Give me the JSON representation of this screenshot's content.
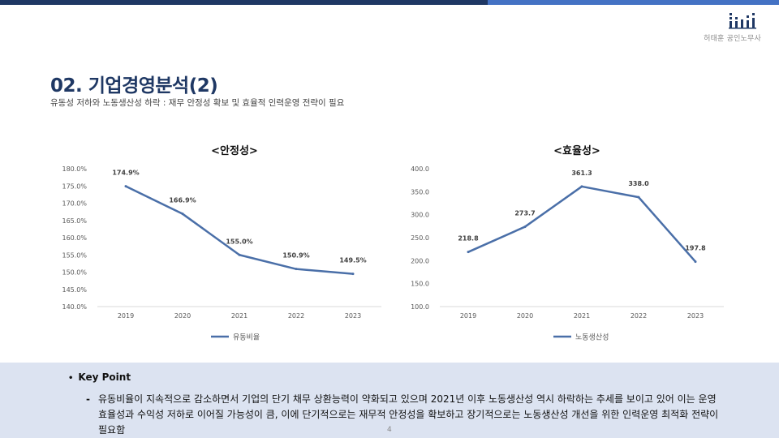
{
  "header": {
    "logo_text": "허태훈 공인노무사",
    "colors": {
      "dark_bar": "#1f3864",
      "light_bar": "#4472c4"
    }
  },
  "slide": {
    "title": "02. 기업경영분석(2)",
    "subtitle": "유동성 저하와 노동생산성 하락 : 재무 안정성 확보 및 효율적 인력운영 전략이 필요",
    "page_number": "4"
  },
  "chart_data": [
    {
      "type": "line",
      "title": "<안정성>",
      "categories": [
        "2019",
        "2020",
        "2021",
        "2022",
        "2023"
      ],
      "series": [
        {
          "name": "유동비율",
          "values": [
            174.9,
            166.9,
            155.0,
            150.9,
            149.5
          ]
        }
      ],
      "data_labels": [
        "174.9%",
        "166.9%",
        "155.0%",
        "150.9%",
        "149.5%"
      ],
      "yticks": [
        "140.0%",
        "145.0%",
        "150.0%",
        "155.0%",
        "160.0%",
        "165.0%",
        "170.0%",
        "175.0%",
        "180.0%"
      ],
      "ylim": [
        140,
        180
      ],
      "color": "#4a6fa8",
      "legend": "bottom"
    },
    {
      "type": "line",
      "title": "<효율성>",
      "categories": [
        "2019",
        "2020",
        "2021",
        "2022",
        "2023"
      ],
      "series": [
        {
          "name": "노동생산성",
          "values": [
            218.8,
            273.7,
            361.3,
            338.0,
            197.8
          ]
        }
      ],
      "data_labels": [
        "218.8",
        "273.7",
        "361.3",
        "338.0",
        "197.8"
      ],
      "yticks": [
        "100.0",
        "150.0",
        "200.0",
        "250.0",
        "300.0",
        "350.0",
        "400.0"
      ],
      "ylim": [
        100,
        400
      ],
      "color": "#4a6fa8",
      "legend": "bottom"
    }
  ],
  "key_point": {
    "bullet": "•",
    "heading": "Key Point",
    "dash": "-",
    "body": "유동비율이 지속적으로 감소하면서 기업의 단기 채무 상환능력이 약화되고 있으며 2021년 이후 노동생산성 역시 하락하는 추세를 보이고 있어 이는 운영 효율성과 수익성 저하로 이어질 가능성이 큼, 이에 단기적으로는 재무적 안정성을 확보하고 장기적으로는 노동생산성 개선을 위한 인력운영 최적화 전략이 필요함"
  }
}
